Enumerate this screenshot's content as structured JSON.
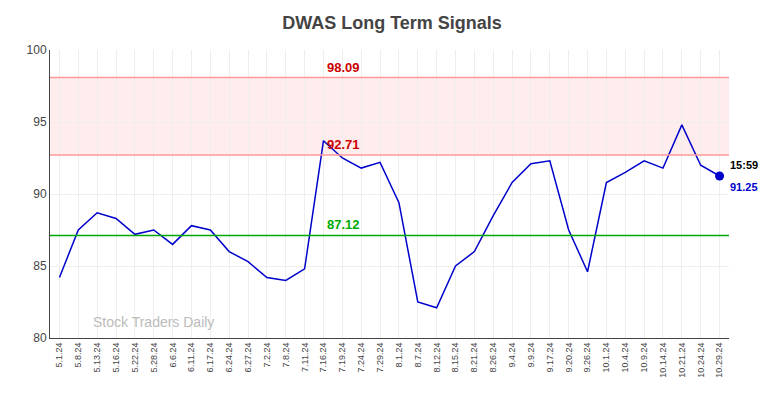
{
  "chart_data": {
    "type": "line",
    "title": "DWAS Long Term Signals",
    "categories": [
      "5.1.24",
      "5.8.24",
      "5.13.24",
      "5.16.24",
      "5.22.24",
      "5.28.24",
      "6.6.24",
      "6.11.24",
      "6.17.24",
      "6.24.24",
      "6.27.24",
      "7.2.24",
      "7.8.24",
      "7.11.24",
      "7.16.24",
      "7.19.24",
      "7.24.24",
      "7.29.24",
      "8.1.24",
      "8.7.24",
      "8.12.24",
      "8.15.24",
      "8.21.24",
      "8.26.24",
      "9.4.24",
      "9.9.24",
      "9.17.24",
      "9.20.24",
      "9.26.24",
      "10.1.24",
      "10.4.24",
      "10.9.24",
      "10.14.24",
      "10.21.24",
      "10.24.24",
      "10.29.24"
    ],
    "values": [
      84.2,
      87.5,
      88.7,
      88.3,
      87.2,
      87.5,
      86.5,
      87.8,
      87.5,
      86.0,
      85.3,
      84.2,
      84.0,
      84.8,
      93.7,
      92.5,
      91.8,
      92.2,
      89.4,
      82.5,
      82.1,
      85.0,
      86.0,
      88.5,
      90.8,
      92.1,
      92.3,
      87.5,
      84.6,
      90.8,
      91.5,
      92.3,
      91.8,
      94.8,
      92.0,
      91.25
    ],
    "color": "#0000cc",
    "ylim": [
      80,
      100
    ],
    "yticks": [
      80,
      85,
      90,
      95,
      100
    ],
    "grid": true,
    "band": {
      "y0": 92.71,
      "y1": 98.09,
      "color": "#ffcccc"
    },
    "hlines": [
      {
        "y": 92.71,
        "label": "92.71",
        "color": "#ff9999",
        "label_color": "#cc0000"
      },
      {
        "y": 98.09,
        "label": "98.09",
        "color": "#ff9999",
        "label_color": "#cc0000"
      },
      {
        "y": 87.12,
        "label": "87.12",
        "color": "#00aa00",
        "label_color": "#00aa00"
      }
    ],
    "last_point": {
      "marker": "circle",
      "time_label": "15:59",
      "value_label": "91.25"
    },
    "watermark": {
      "text": "Stock Traders Daily",
      "color": "#bbbbbb"
    }
  }
}
